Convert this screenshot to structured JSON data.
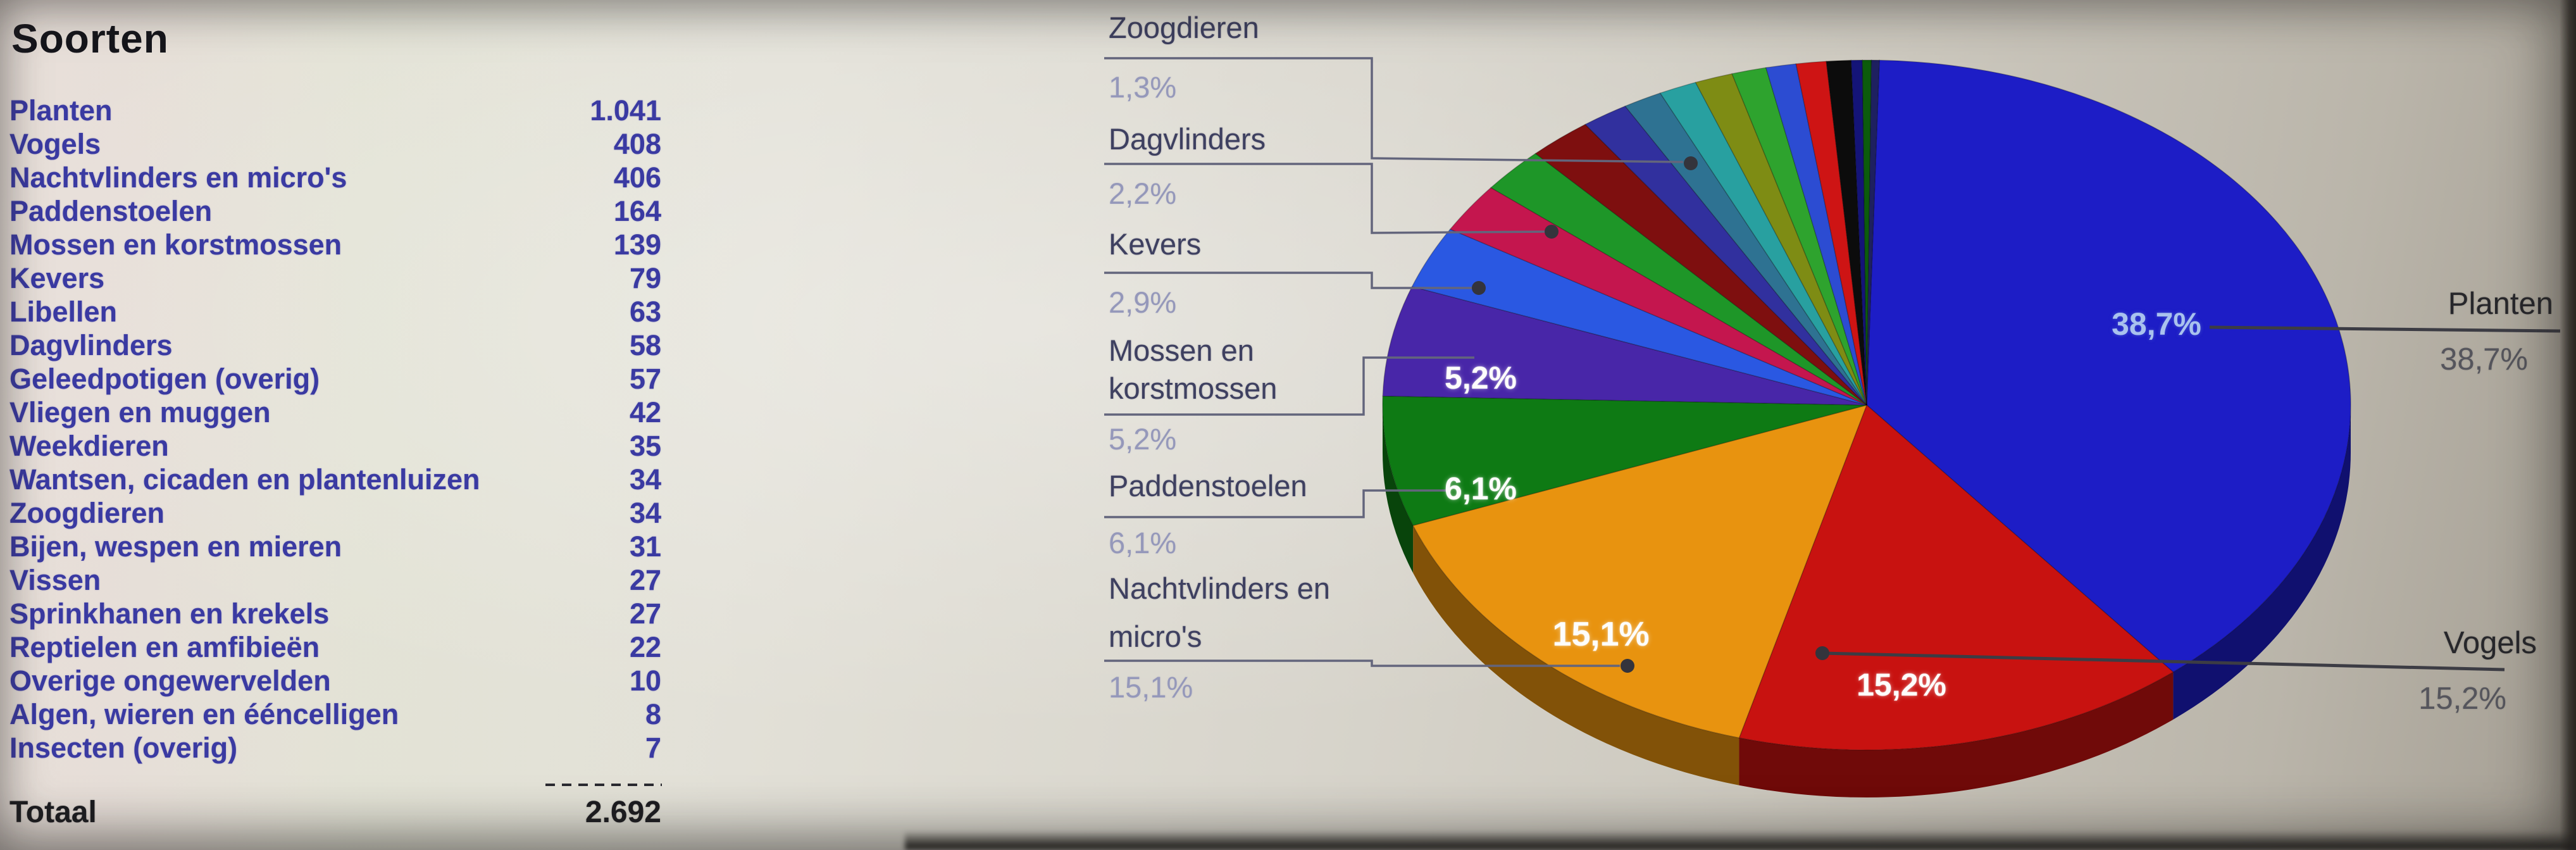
{
  "table": {
    "title": "Soorten",
    "rows": [
      {
        "label": "Planten",
        "value": "1.041"
      },
      {
        "label": "Vogels",
        "value": "408"
      },
      {
        "label": "Nachtvlinders en micro's",
        "value": "406"
      },
      {
        "label": "Paddenstoelen",
        "value": "164"
      },
      {
        "label": "Mossen en korstmossen",
        "value": "139"
      },
      {
        "label": "Kevers",
        "value": "79"
      },
      {
        "label": "Libellen",
        "value": "63"
      },
      {
        "label": "Dagvlinders",
        "value": "58"
      },
      {
        "label": "Geleedpotigen (overig)",
        "value": "57"
      },
      {
        "label": "Vliegen en muggen",
        "value": "42"
      },
      {
        "label": "Weekdieren",
        "value": "35"
      },
      {
        "label": "Wantsen, cicaden en plantenluizen",
        "value": "34"
      },
      {
        "label": "Zoogdieren",
        "value": "34"
      },
      {
        "label": "Bijen, wespen en mieren",
        "value": "31"
      },
      {
        "label": "Vissen",
        "value": "27"
      },
      {
        "label": "Sprinkhanen en krekels",
        "value": "27"
      },
      {
        "label": "Reptielen en amfibieën",
        "value": "22"
      },
      {
        "label": "Overige ongewervelden",
        "value": "10"
      },
      {
        "label": "Algen, wieren en ééncelligen",
        "value": "8"
      },
      {
        "label": "Insecten (overig)",
        "value": "7"
      }
    ],
    "total_label": "Totaal",
    "total_value": "2.692"
  },
  "callouts": [
    {
      "id": "zoogdieren",
      "line1": "Zoogdieren",
      "line2": "",
      "pct": "1,3%"
    },
    {
      "id": "dagvlinders",
      "line1": "Dagvlinders",
      "line2": "",
      "pct": "2,2%"
    },
    {
      "id": "kevers",
      "line1": "Kevers",
      "line2": "",
      "pct": "2,9%"
    },
    {
      "id": "mossen",
      "line1": "Mossen en",
      "line2": "korstmossen",
      "pct": "5,2%"
    },
    {
      "id": "paddenstoelen",
      "line1": "Paddenstoelen",
      "line2": "",
      "pct": "6,1%"
    },
    {
      "id": "nachtvlinders",
      "line1": "Nachtvlinders en",
      "line2": "micro's",
      "pct": "15,1%"
    }
  ],
  "pie_labels": {
    "mossen": "5,2%",
    "paddenstoelen": "6,1%",
    "nachtvlinders": "15,1%",
    "vogels": "15,2%",
    "planten": "38,7%"
  },
  "external_labels": {
    "planten": {
      "name": "Planten",
      "pct": "38,7%"
    },
    "vogels": {
      "name": "Vogels",
      "pct": "15,2%"
    }
  },
  "chart_data": {
    "type": "pie",
    "title": "Soorten",
    "categories": [
      "Planten",
      "Vogels",
      "Nachtvlinders en micro's",
      "Paddenstoelen",
      "Mossen en korstmossen",
      "Kevers",
      "Libellen",
      "Dagvlinders",
      "Geleedpotigen (overig)",
      "Vliegen en muggen",
      "Weekdieren",
      "Wantsen, cicaden en plantenluizen",
      "Zoogdieren",
      "Bijen, wespen en mieren",
      "Vissen",
      "Sprinkhanen en krekels",
      "Reptielen en amfibieën",
      "Overige ongewervelden",
      "Algen, wieren en ééncelligen",
      "Insecten (overig)"
    ],
    "values": [
      1041,
      408,
      406,
      164,
      139,
      79,
      63,
      58,
      57,
      42,
      35,
      34,
      34,
      31,
      27,
      27,
      22,
      10,
      8,
      7
    ],
    "total": 2692,
    "percent_labels": [
      "38,7%",
      "15,2%",
      "15,1%",
      "6,1%",
      "5,2%",
      "2,9%",
      "2,3%",
      "2,2%",
      "2,1%",
      "1,6%",
      "1,3%",
      "1,3%",
      "1,3%",
      "1,2%",
      "1,0%",
      "1,0%",
      "0,8%",
      "0,4%",
      "0,3%",
      "0,3%"
    ],
    "colors": [
      "#1d1dc6",
      "#c81210",
      "#e8930f",
      "#0e7a14",
      "#4826a8",
      "#2a58e2",
      "#c4164e",
      "#1e9628",
      "#7e0f0f",
      "#31309e",
      "#2e7292",
      "#28a0a0",
      "#7e8c14",
      "#2ea32e",
      "#2c4cd2",
      "#ce1414",
      "#0c0c0c",
      "#141478",
      "#0c5c0c",
      "#1e2060"
    ],
    "style": "3d-pie",
    "start_angle_deg": -88.5,
    "legend": "callout-labels-left, external-labels-right",
    "labels_shown_in_pie": [
      "38,7%",
      "15,2%",
      "15,1%",
      "6,1%",
      "5,2%"
    ]
  }
}
